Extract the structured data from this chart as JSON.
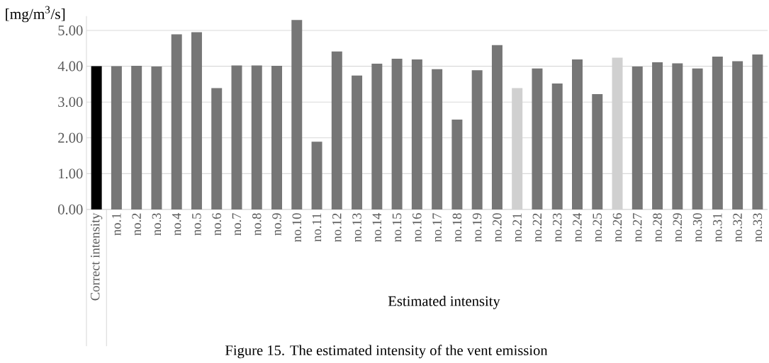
{
  "chart_data": {
    "type": "bar",
    "ylabel": "[mg/m$^{3}$/s]",
    "xlabel": "Estimated intensity",
    "annotations": [
      "Figure 15. The estimated intensity of the vent emission"
    ],
    "categories": [
      "Correct intensity",
      "no.1",
      "no.2",
      "no.3",
      "no.4",
      "no.5",
      "no.6",
      "no.7",
      "no.8",
      "no.9",
      "no.10",
      "no.11",
      "no.12",
      "no.13",
      "no.14",
      "no.15",
      "no.16",
      "no.17",
      "no.18",
      "no.19",
      "no.20",
      "no.21",
      "no.22",
      "no.23",
      "no.24",
      "no.25",
      "no.26",
      "no.27",
      "no.28",
      "no.29",
      "no.30",
      "no.31",
      "no.32",
      "no.33"
    ],
    "values": [
      4.0,
      4.0,
      4.01,
      3.99,
      4.89,
      4.95,
      3.39,
      4.02,
      4.02,
      4.01,
      5.29,
      1.89,
      4.41,
      3.74,
      4.07,
      4.21,
      4.19,
      3.92,
      2.51,
      3.89,
      4.59,
      3.39,
      3.94,
      3.52,
      4.19,
      3.22,
      4.24,
      3.99,
      4.11,
      4.08,
      3.94,
      4.27,
      4.14,
      4.33
    ],
    "colors": [
      "#000000",
      "#767676",
      "#767676",
      "#767676",
      "#767676",
      "#767676",
      "#767676",
      "#767676",
      "#767676",
      "#767676",
      "#767676",
      "#767676",
      "#767676",
      "#767676",
      "#767676",
      "#767676",
      "#767676",
      "#767676",
      "#767676",
      "#767676",
      "#767676",
      "#d0d0d0",
      "#767676",
      "#767676",
      "#767676",
      "#767676",
      "#d0d0d0",
      "#767676",
      "#767676",
      "#767676",
      "#767676",
      "#767676",
      "#767676",
      "#767676"
    ],
    "ylim": [
      0,
      5.4
    ],
    "yticks": [
      {
        "value": 0,
        "label": "0.00"
      },
      {
        "value": 1,
        "label": "1.00"
      },
      {
        "value": 2,
        "label": "2.00"
      },
      {
        "value": 3,
        "label": "3.00"
      },
      {
        "value": 4,
        "label": "4.00"
      },
      {
        "value": 5,
        "label": "5.00"
      }
    ],
    "grid": "y"
  }
}
